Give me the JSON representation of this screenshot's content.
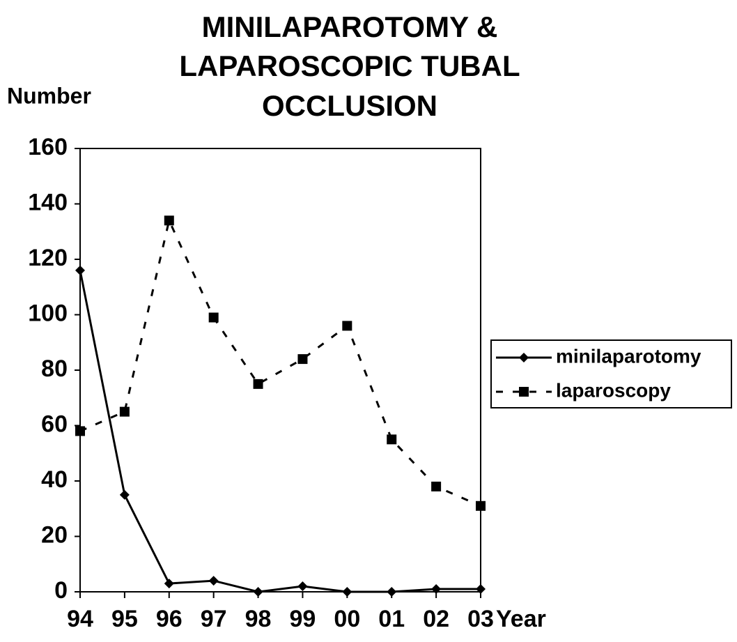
{
  "chart_data": {
    "type": "line",
    "title": [
      "MINILAPAROTOMY &",
      "LAPAROSCOPIC TUBAL",
      "OCCLUSION"
    ],
    "y_label": "Number",
    "x_label": "Year",
    "categories": [
      "94",
      "95",
      "96",
      "97",
      "98",
      "99",
      "00",
      "01",
      "02",
      "03"
    ],
    "series": [
      {
        "name": "minilaparotomy",
        "color": "#000000",
        "line_style": "solid",
        "marker": "diamond",
        "values": [
          116,
          35,
          3,
          4,
          0,
          2,
          0,
          0,
          1,
          1
        ]
      },
      {
        "name": "laparoscopy",
        "color": "#000000",
        "line_style": "dashed",
        "marker": "square",
        "values": [
          58,
          65,
          134,
          99,
          75,
          84,
          96,
          55,
          38,
          31
        ]
      }
    ],
    "ylim": [
      0,
      160
    ],
    "yticks": [
      0,
      20,
      40,
      60,
      80,
      100,
      120,
      140,
      160
    ],
    "grid": false,
    "legend": "right"
  }
}
